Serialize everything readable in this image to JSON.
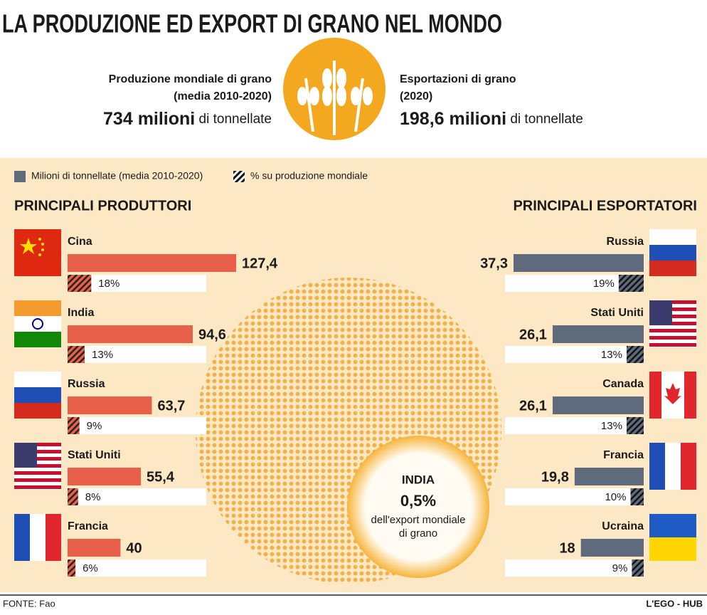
{
  "title": "LA PRODUZIONE ED EXPORT DI GRANO NEL MONDO",
  "header": {
    "left": {
      "line1": "Produzione mondiale di grano",
      "line2": "(media 2010-2020)",
      "amount": "734 milioni",
      "unit": "di tonnellate"
    },
    "right": {
      "line1": "Esportazioni di grano",
      "line2": "(2020)",
      "amount": "198,6 milioni",
      "unit": "di tonnellate"
    }
  },
  "callout": {
    "country": "INDIA",
    "share": "0,5%",
    "line1": "dell'export mondiale",
    "line2": "di grano"
  },
  "footer": {
    "source": "FONTE: Fao",
    "credit": "L'EGO - HUB"
  },
  "chart_data": [
    {
      "type": "bar",
      "title": "PRINCIPALI PRODUTTORI",
      "categories": [
        "Cina",
        "India",
        "Russia",
        "Stati Uniti",
        "Francia"
      ],
      "series": [
        {
          "name": "Milioni di tonnellate (media 2010-2020)",
          "color": "#e8604a",
          "values": [
            127.4,
            94.6,
            63.7,
            55.4,
            40
          ],
          "value_labels": [
            "127,4",
            "94,6",
            "63,7",
            "55,4",
            "40"
          ]
        },
        {
          "name": "% su produzione mondiale",
          "color": "#e8604a",
          "values": [
            18,
            13,
            9,
            8,
            6
          ],
          "value_labels": [
            "18%",
            "13%",
            "9%",
            "8%",
            "6%"
          ]
        }
      ]
    },
    {
      "type": "bar",
      "title": "PRINCIPALI ESPORTATORI",
      "categories": [
        "Russia",
        "Stati Uniti",
        "Canada",
        "Francia",
        "Ucraina"
      ],
      "series": [
        {
          "color": "#5f6b7c",
          "values": [
            37.3,
            26.1,
            26.1,
            19.8,
            18
          ],
          "value_labels": [
            "37,3",
            "26,1",
            "26,1",
            "19,8",
            "18"
          ]
        },
        {
          "color": "#5f6b7c",
          "values": [
            19,
            13,
            13,
            10,
            9
          ],
          "value_labels": [
            "19%",
            "13%",
            "13%",
            "10%",
            "9%"
          ]
        }
      ]
    }
  ]
}
